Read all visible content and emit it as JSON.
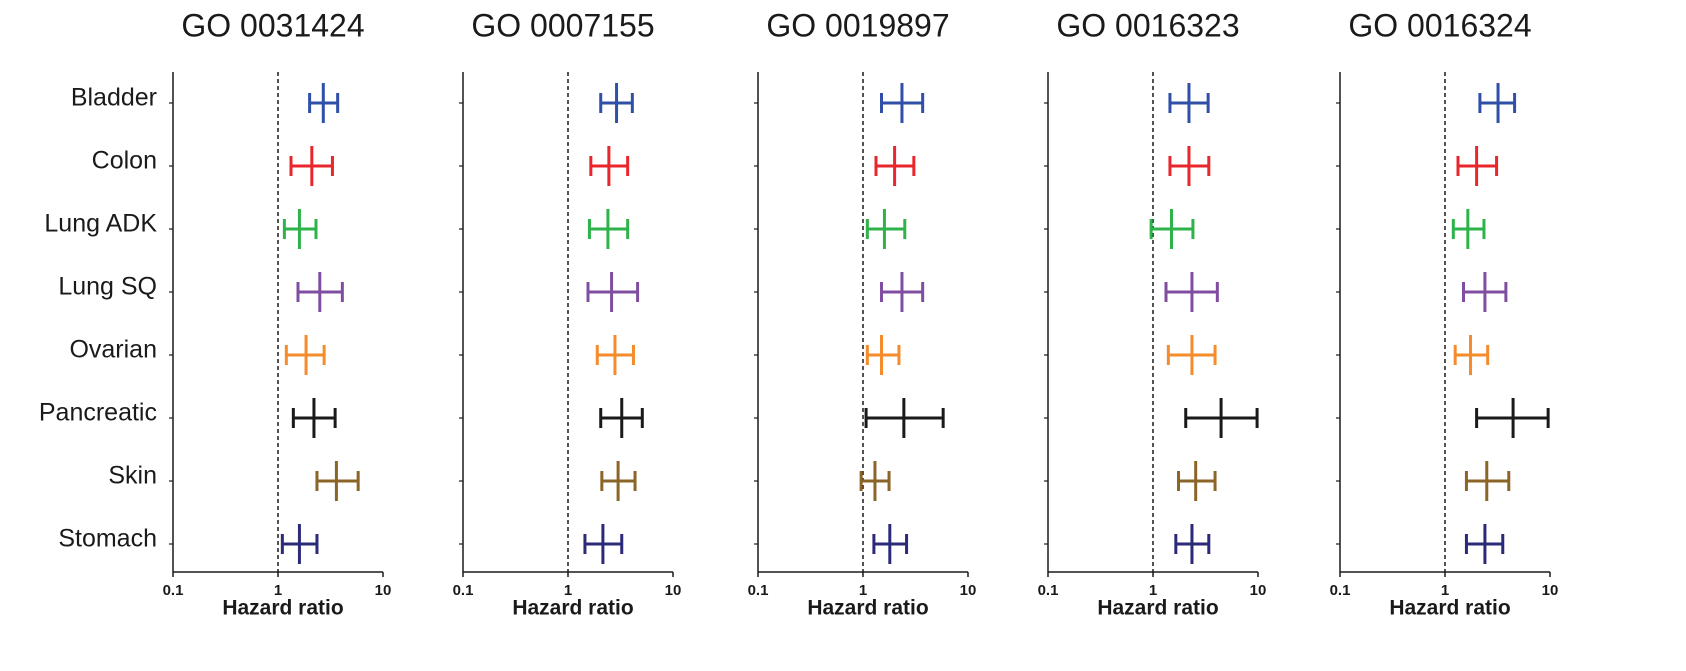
{
  "chart_data": [
    {
      "type": "forest",
      "title": "GO 0031424",
      "x_label": "Hazard ratio",
      "categories": [
        "Bladder",
        "Colon",
        "Lung ADK",
        "Lung SQ",
        "Ovarian",
        "Pancreatic",
        "Skin",
        "Stomach"
      ],
      "colors": [
        "#2f4fa8",
        "#e8262b",
        "#2db34a",
        "#7f4ea0",
        "#f58b2a",
        "#1a1a1a",
        "#8b6428",
        "#2b2a78"
      ],
      "values": [
        2.7,
        2.1,
        1.6,
        2.5,
        1.85,
        2.2,
        3.6,
        1.6
      ],
      "lower": [
        2.0,
        1.33,
        1.15,
        1.55,
        1.2,
        1.4,
        2.35,
        1.1
      ],
      "upper": [
        3.7,
        3.3,
        2.3,
        4.1,
        2.75,
        3.5,
        5.8,
        2.35
      ],
      "xlim": [
        0.1,
        10
      ],
      "xticks": [
        0.1,
        1,
        10
      ],
      "log_x": true,
      "ref_line": 1
    },
    {
      "type": "forest",
      "title": "GO 0007155",
      "x_label": "Hazard ratio",
      "colors": [
        "#2f4fa8",
        "#e8262b",
        "#2db34a",
        "#7f4ea0",
        "#f58b2a",
        "#1a1a1a",
        "#8b6428",
        "#2b2a78"
      ],
      "values": [
        2.9,
        2.45,
        2.4,
        2.6,
        2.8,
        3.25,
        3.0,
        2.15
      ],
      "lower": [
        2.05,
        1.65,
        1.6,
        1.55,
        1.9,
        2.05,
        2.1,
        1.45
      ],
      "upper": [
        4.1,
        3.7,
        3.7,
        4.6,
        4.2,
        5.1,
        4.35,
        3.25
      ],
      "xlim": [
        0.1,
        10
      ],
      "xticks": [
        0.1,
        1,
        10
      ],
      "log_x": true,
      "ref_line": 1
    },
    {
      "type": "forest",
      "title": "GO 0019897",
      "x_label": "Hazard ratio",
      "colors": [
        "#2f4fa8",
        "#e8262b",
        "#2db34a",
        "#7f4ea0",
        "#f58b2a",
        "#1a1a1a",
        "#8b6428",
        "#2b2a78"
      ],
      "values": [
        2.35,
        2.0,
        1.6,
        2.35,
        1.5,
        2.45,
        1.3,
        1.8
      ],
      "lower": [
        1.5,
        1.33,
        1.1,
        1.5,
        1.1,
        1.07,
        0.96,
        1.27
      ],
      "upper": [
        3.7,
        3.05,
        2.5,
        3.7,
        2.2,
        5.8,
        1.77,
        2.6
      ],
      "xlim": [
        0.1,
        10
      ],
      "xticks": [
        0.1,
        1,
        10
      ],
      "log_x": true,
      "ref_line": 1
    },
    {
      "type": "forest",
      "title": "GO 0016323",
      "x_label": "Hazard ratio",
      "colors": [
        "#2f4fa8",
        "#e8262b",
        "#2db34a",
        "#7f4ea0",
        "#f58b2a",
        "#1a1a1a",
        "#8b6428",
        "#2b2a78"
      ],
      "values": [
        2.2,
        2.2,
        1.5,
        2.35,
        2.35,
        4.45,
        2.55,
        2.35
      ],
      "lower": [
        1.45,
        1.45,
        0.96,
        1.33,
        1.4,
        2.05,
        1.75,
        1.65
      ],
      "upper": [
        3.35,
        3.4,
        2.4,
        4.1,
        3.9,
        9.8,
        3.9,
        3.4
      ],
      "xlim": [
        0.1,
        10
      ],
      "xticks": [
        0.1,
        1,
        10
      ],
      "log_x": true,
      "ref_line": 1
    },
    {
      "type": "forest",
      "title": "GO 0016324",
      "x_label": "Hazard ratio",
      "colors": [
        "#2f4fa8",
        "#e8262b",
        "#2db34a",
        "#7f4ea0",
        "#f58b2a",
        "#1a1a1a",
        "#8b6428",
        "#2b2a78"
      ],
      "values": [
        3.2,
        2.0,
        1.65,
        2.4,
        1.75,
        4.45,
        2.5,
        2.4
      ],
      "lower": [
        2.15,
        1.33,
        1.2,
        1.5,
        1.25,
        2.0,
        1.6,
        1.6
      ],
      "upper": [
        4.6,
        3.1,
        2.35,
        3.8,
        2.55,
        9.6,
        4.05,
        3.55
      ],
      "xlim": [
        0.1,
        10
      ],
      "xticks": [
        0.1,
        1,
        10
      ],
      "log_x": true,
      "ref_line": 1
    }
  ]
}
